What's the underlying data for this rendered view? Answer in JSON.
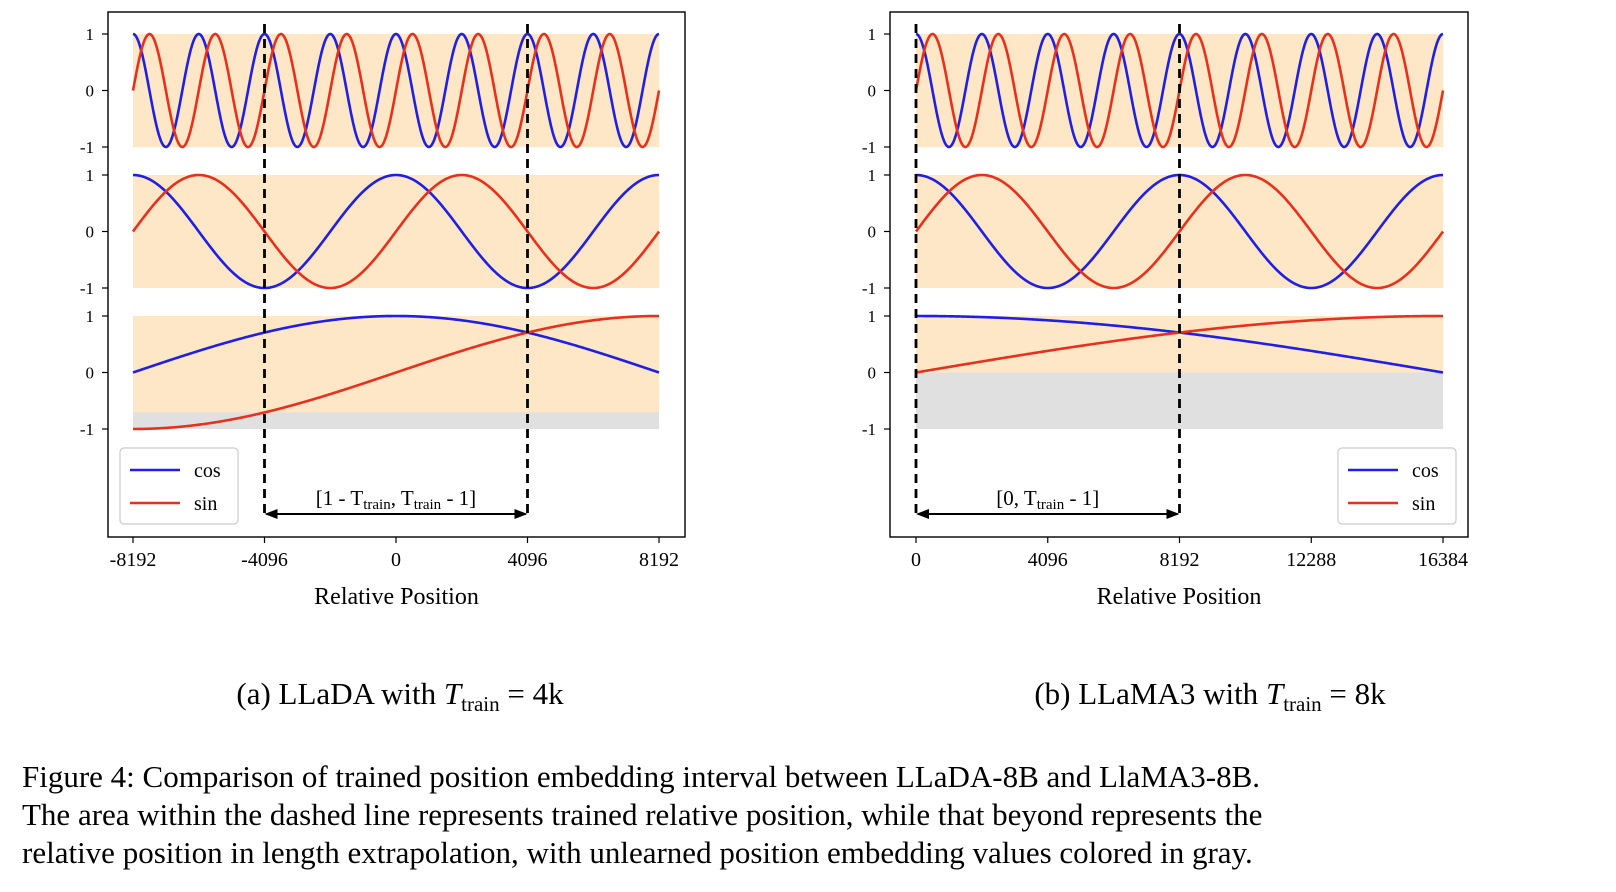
{
  "figure": {
    "caption_lines": [
      "Figure 4: Comparison of trained position embedding interval between LLaDA-8B and LlaMA3-8B.",
      "The area within the dashed line represents trained relative position, while that beyond represents the",
      "relative position in length extrapolation, with unlearned position embedding values colored in gray."
    ]
  },
  "subcaptions": {
    "a": {
      "prefix": "(a) LLaDA with ",
      "var": "T",
      "sub": "train",
      "suffix": " = 4k"
    },
    "b": {
      "prefix": "(b) LLaMA3 with ",
      "var": "T",
      "sub": "train",
      "suffix": " = 8k"
    }
  },
  "colors": {
    "cos": "#1f1fe6",
    "sin": "#e8301c",
    "trained_band": "#fde7c6",
    "untrained_band": "#e0e0e0",
    "axis": "#000000"
  },
  "chart_data": [
    {
      "type": "line",
      "id": "a",
      "xlabel": "Relative Position",
      "xlim": [
        -8192,
        8192
      ],
      "xticks": [
        -8192,
        -4096,
        0,
        4096,
        8192
      ],
      "subplots": [
        {
          "ylim": [
            -1,
            1
          ],
          "yticks": [
            "1",
            "0",
            "-1"
          ],
          "cycles_over_range": 8,
          "gray_band": null
        },
        {
          "ylim": [
            -1,
            1
          ],
          "yticks": [
            "1",
            "0",
            "-1"
          ],
          "cycles_over_range": 2,
          "gray_band": null
        },
        {
          "ylim": [
            -1,
            1
          ],
          "yticks": [
            "1",
            "0",
            "-1"
          ],
          "cycles_over_range": 0.5,
          "gray_band": [
            -1,
            -0.7071
          ]
        }
      ],
      "series": [
        {
          "name": "cos",
          "function": "cos(2*pi*cycles*x/range)"
        },
        {
          "name": "sin",
          "function": "sin(2*pi*cycles*x/range)"
        }
      ],
      "legend": {
        "position": "bottom-left",
        "entries": [
          "cos",
          "sin"
        ]
      },
      "trained_interval": {
        "x": [
          -4096,
          4096
        ],
        "label_prefix": "[1 - T",
        "label_sub": "train",
        "label_mid": ", T",
        "label_sub2": "train",
        "label_suffix": " - 1]"
      }
    },
    {
      "type": "line",
      "id": "b",
      "xlabel": "Relative Position",
      "xlim": [
        0,
        16384
      ],
      "xticks": [
        0,
        4096,
        8192,
        12288,
        16384
      ],
      "subplots": [
        {
          "ylim": [
            -1,
            1
          ],
          "yticks": [
            "1",
            "0",
            "-1"
          ],
          "cycles_over_range": 8,
          "gray_band": null
        },
        {
          "ylim": [
            -1,
            1
          ],
          "yticks": [
            "1",
            "0",
            "-1"
          ],
          "cycles_over_range": 2,
          "gray_band": null
        },
        {
          "ylim": [
            -1,
            1
          ],
          "yticks": [
            "1",
            "0",
            "-1"
          ],
          "cycles_over_range": 0.25,
          "gray_band": [
            -1,
            0
          ]
        }
      ],
      "series": [
        {
          "name": "cos",
          "function": "cos(2*pi*cycles*x/range)"
        },
        {
          "name": "sin",
          "function": "sin(2*pi*cycles*x/range)"
        }
      ],
      "legend": {
        "position": "bottom-right",
        "entries": [
          "cos",
          "sin"
        ]
      },
      "trained_interval": {
        "x": [
          0,
          8192
        ],
        "label_prefix": "[0, T",
        "label_sub": "train",
        "label_mid": "",
        "label_sub2": "",
        "label_suffix": " - 1]"
      }
    }
  ]
}
